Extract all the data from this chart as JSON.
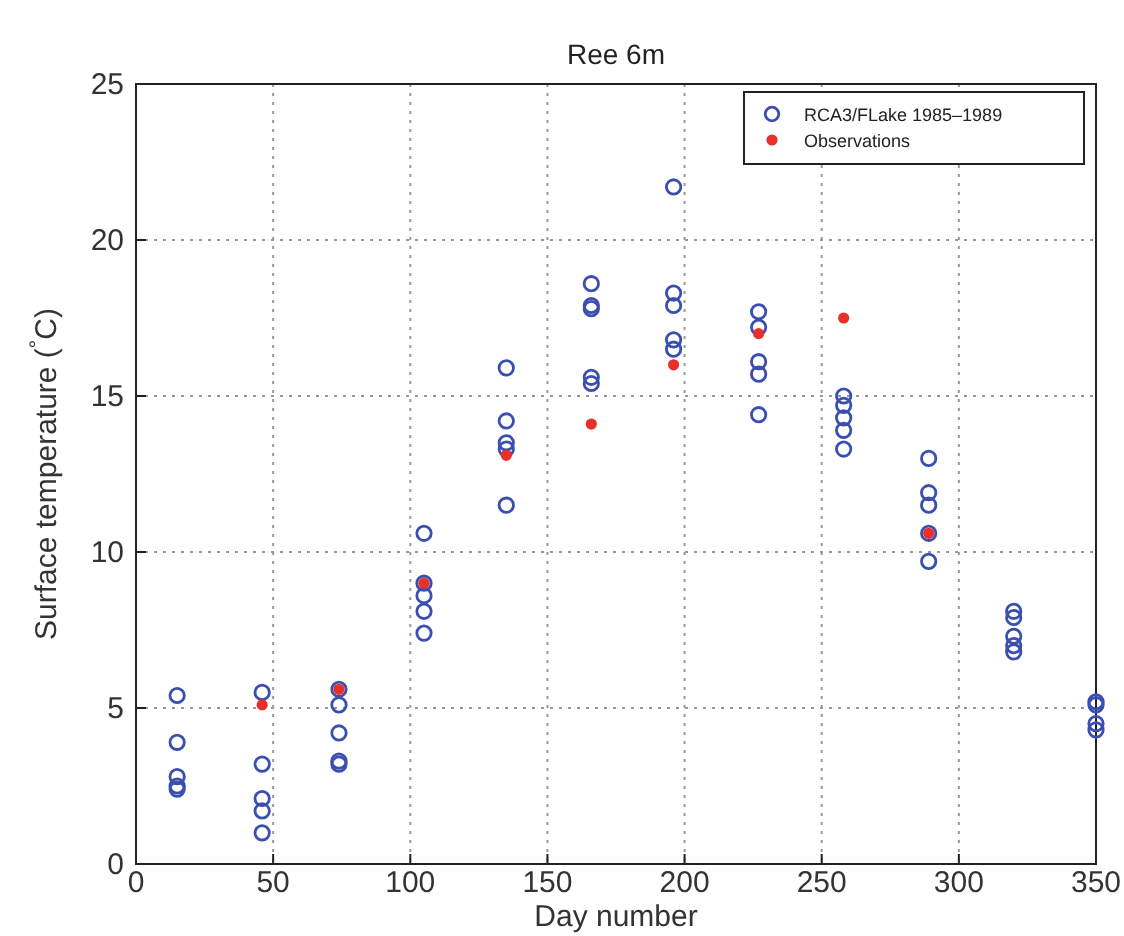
{
  "chart_data": {
    "type": "scatter",
    "title": "Ree 6m",
    "xlabel": "Day number",
    "ylabel": "Surface temperature ($^{°}$C)",
    "xlim": [
      0,
      350
    ],
    "xticks": [
      0,
      50,
      100,
      150,
      200,
      250,
      300,
      350
    ],
    "ylim": [
      0,
      25
    ],
    "yticks": [
      0,
      5,
      10,
      15,
      20,
      25
    ],
    "grid": true,
    "legend": "top right",
    "series": [
      {
        "name": "RCA3/FLake 1985–1989",
        "color": "#3a4fb0",
        "marker": "circle",
        "x": [
          15,
          15,
          15,
          15,
          15,
          46,
          46,
          46,
          46,
          46,
          74,
          74,
          74,
          74,
          74,
          105,
          105,
          105,
          105,
          105,
          135,
          135,
          135,
          135,
          135,
          166,
          166,
          166,
          166,
          166,
          196,
          196,
          196,
          196,
          196,
          227,
          227,
          227,
          227,
          227,
          258,
          258,
          258,
          258,
          258,
          289,
          289,
          289,
          289,
          289,
          320,
          320,
          320,
          320,
          320,
          350,
          350,
          350,
          350
        ],
        "values": [
          5.4,
          3.9,
          2.8,
          2.5,
          2.4,
          5.5,
          3.2,
          2.1,
          1.7,
          1.0,
          5.6,
          5.1,
          4.2,
          3.3,
          3.2,
          10.6,
          9.0,
          8.6,
          8.1,
          7.4,
          15.9,
          14.2,
          13.5,
          13.3,
          11.5,
          18.6,
          17.9,
          17.8,
          15.6,
          15.4,
          21.7,
          18.3,
          17.9,
          16.8,
          16.5,
          17.7,
          17.2,
          16.1,
          15.7,
          14.4,
          15.0,
          14.7,
          14.3,
          13.9,
          13.3,
          13.0,
          11.9,
          11.5,
          10.6,
          9.7,
          8.1,
          7.9,
          7.3,
          7.0,
          6.8,
          5.2,
          5.1,
          4.5,
          4.3
        ]
      },
      {
        "name": "Observations",
        "color": "#e8302a",
        "marker": "circle",
        "x": [
          46,
          74,
          105,
          135,
          166,
          196,
          227,
          258,
          289
        ],
        "values": [
          5.1,
          5.6,
          9.0,
          13.1,
          14.1,
          16.0,
          17.0,
          17.5,
          10.6
        ]
      }
    ]
  }
}
